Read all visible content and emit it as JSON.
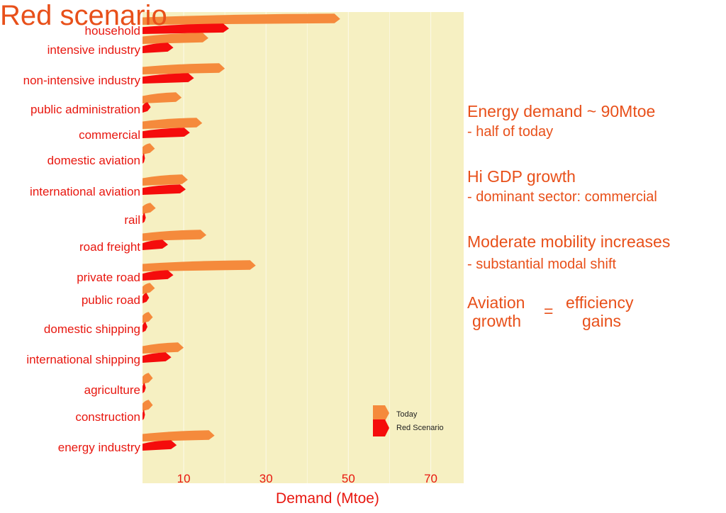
{
  "slide": {
    "title": "Red scenario",
    "notes": [
      {
        "heading": "Energy demand ~  90Mtoe",
        "detail": " - half of today"
      },
      {
        "heading": "Hi GDP growth",
        "detail": " - dominant sector: commercial"
      },
      {
        "heading": "Moderate mobility increases",
        "detail": " - substantial modal shift"
      }
    ],
    "aviation_note": {
      "left_top": "Aviation",
      "left_bottom": "growth",
      "equals": "=",
      "right_top": "efficiency",
      "right_bottom": "gains"
    }
  },
  "colors": {
    "today": "#f58a3c",
    "red_scenario": "#f50c0c",
    "plot_background": "#f6f0c2",
    "gridline": "#fbf8e4",
    "label_text": "#e8170f",
    "note_text": "#e8501a"
  },
  "chart_data": {
    "type": "bar",
    "orientation": "horizontal",
    "title": "",
    "xlabel": "Demand (Mtoe)",
    "ylabel": "",
    "xlim": [
      0,
      78
    ],
    "xticks": [
      10,
      30,
      50,
      70
    ],
    "grid": true,
    "legend_position": "bottom-right",
    "categories": [
      "household",
      "intensive industry",
      "non-intensive industry",
      "public administration",
      "commercial",
      "domestic aviation",
      "international aviation",
      "rail",
      "road freight",
      "private road",
      "public road",
      "domestic shipping",
      "international shipping",
      "agriculture",
      "construction",
      "energy industry"
    ],
    "series": [
      {
        "name": "Today",
        "values": [
          48,
          16,
          20,
          9.5,
          14.5,
          3,
          11,
          3.2,
          15.5,
          27.5,
          3,
          2.5,
          10,
          2.5,
          2.5,
          17.5
        ]
      },
      {
        "name": "Red Scenario",
        "values": [
          21,
          7.5,
          12.5,
          2,
          11.5,
          0.6,
          10.5,
          0.8,
          6.2,
          7.5,
          1.6,
          1.2,
          7,
          0.8,
          0.6,
          8.3
        ]
      }
    ]
  }
}
